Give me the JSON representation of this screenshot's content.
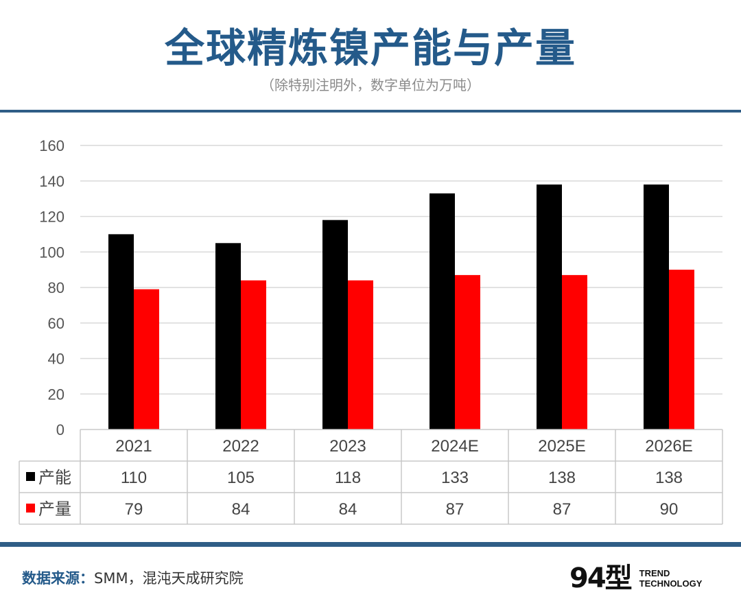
{
  "header": {
    "title": "全球精炼镍产能与产量",
    "subtitle": "（除特别注明外，数字单位为万吨）"
  },
  "footer": {
    "source_label": "数据来源：",
    "source_value": "SMM，混沌天成研究院",
    "logo_mark": "94型",
    "logo_line1": "TREND",
    "logo_line2": "TECHNOLOGY"
  },
  "colors": {
    "series_capacity": "#000000",
    "series_output": "#ff0000",
    "grid": "#d9d9d9",
    "title": "#245a8a"
  },
  "chart_data": {
    "type": "bar",
    "title": "全球精炼镍产能与产量",
    "categories": [
      "2021",
      "2022",
      "2023",
      "2024E",
      "2025E",
      "2026E"
    ],
    "series": [
      {
        "name": "产能",
        "values": [
          110,
          105,
          118,
          133,
          138,
          138
        ]
      },
      {
        "name": "产量",
        "values": [
          79,
          84,
          84,
          87,
          87,
          90
        ]
      }
    ],
    "ylim": [
      0,
      160
    ],
    "yticks": [
      "0",
      "20",
      "40",
      "60",
      "80",
      "100",
      "120",
      "140",
      "160"
    ],
    "grid": true,
    "legend": "data-table"
  }
}
